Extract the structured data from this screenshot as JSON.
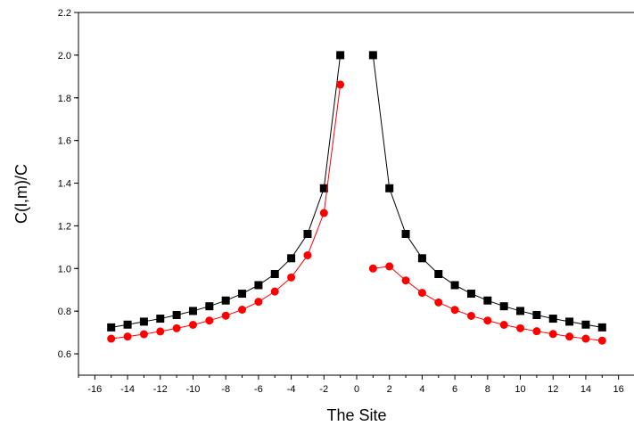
{
  "chart_data": {
    "type": "scatter",
    "xlabel": "The Site",
    "ylabel": "C(l,m)/C",
    "xlim": [
      -17,
      17
    ],
    "ylim": [
      0.5,
      2.2
    ],
    "xticks": [
      "-16",
      "-14",
      "-12",
      "-10",
      "-8",
      "-6",
      "-4",
      "-2",
      "0",
      "2",
      "4",
      "6",
      "8",
      "10",
      "12",
      "14",
      "16"
    ],
    "yticks": [
      "0.6",
      "0.8",
      "1.0",
      "1.2",
      "1.4",
      "1.6",
      "1.8",
      "2.0",
      "2.2"
    ],
    "grid": false,
    "series": [
      {
        "color": "#000000",
        "marker": "square",
        "x": [
          -15,
          -14,
          -13,
          -12,
          -11,
          -10,
          -9,
          -8,
          -7,
          -6,
          -5,
          -4,
          -3,
          -2,
          -1,
          1,
          2,
          3,
          4,
          5,
          6,
          7,
          8,
          9,
          10,
          11,
          12,
          13,
          14,
          15
        ],
        "y": [
          0.724,
          0.737,
          0.751,
          0.765,
          0.782,
          0.801,
          0.823,
          0.85,
          0.882,
          0.922,
          0.974,
          1.048,
          1.162,
          1.376,
          2.0,
          2.0,
          1.376,
          1.162,
          1.048,
          0.974,
          0.922,
          0.882,
          0.85,
          0.823,
          0.801,
          0.782,
          0.765,
          0.751,
          0.737,
          0.724
        ]
      },
      {
        "color": "#ff0000",
        "marker": "circle",
        "x": [
          -15,
          -14,
          -13,
          -12,
          -11,
          -10,
          -9,
          -8,
          -7,
          -6,
          -5,
          -4,
          -3,
          -2,
          -1,
          1,
          2,
          3,
          4,
          5,
          6,
          7,
          8,
          9,
          10,
          11,
          12,
          13,
          14,
          15
        ],
        "y": [
          0.671,
          0.681,
          0.692,
          0.705,
          0.72,
          0.736,
          0.756,
          0.779,
          0.807,
          0.844,
          0.892,
          0.958,
          1.062,
          1.26,
          1.862,
          1.0,
          1.01,
          0.944,
          0.886,
          0.841,
          0.806,
          0.778,
          0.756,
          0.736,
          0.72,
          0.706,
          0.693,
          0.681,
          0.671,
          0.662
        ]
      }
    ]
  }
}
